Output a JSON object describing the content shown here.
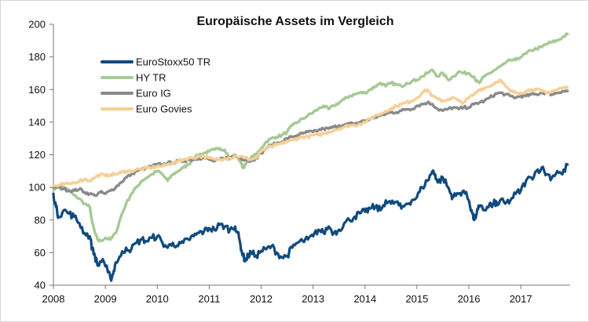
{
  "chart_data": {
    "type": "line",
    "title": "Europäische Assets im Vergleich",
    "xlabel": "",
    "ylabel": "",
    "xlim": [
      2008,
      2017.95
    ],
    "ylim": [
      40,
      200
    ],
    "y_ticks": [
      40,
      60,
      80,
      100,
      120,
      140,
      160,
      180,
      200
    ],
    "x_ticks": [
      2008,
      2009,
      2010,
      2011,
      2012,
      2013,
      2014,
      2015,
      2016,
      2017
    ],
    "grid": false,
    "legend_position": "top-left",
    "series": [
      {
        "name": "EuroStoxx50 TR",
        "color": "#114a7e",
        "x": [
          2008.0,
          2008.05,
          2008.1,
          2008.2,
          2008.3,
          2008.4,
          2008.5,
          2008.6,
          2008.7,
          2008.75,
          2008.8,
          2008.85,
          2008.95,
          2009.05,
          2009.1,
          2009.15,
          2009.2,
          2009.3,
          2009.4,
          2009.5,
          2009.6,
          2009.7,
          2009.8,
          2009.9,
          2010.0,
          2010.1,
          2010.2,
          2010.3,
          2010.4,
          2010.5,
          2010.6,
          2010.7,
          2010.8,
          2010.9,
          2011.0,
          2011.1,
          2011.2,
          2011.3,
          2011.4,
          2011.5,
          2011.55,
          2011.6,
          2011.65,
          2011.7,
          2011.75,
          2011.8,
          2011.9,
          2012.0,
          2012.1,
          2012.2,
          2012.3,
          2012.4,
          2012.5,
          2012.6,
          2012.7,
          2012.8,
          2012.9,
          2013.0,
          2013.1,
          2013.2,
          2013.3,
          2013.4,
          2013.5,
          2013.6,
          2013.7,
          2013.8,
          2013.9,
          2014.0,
          2014.1,
          2014.2,
          2014.3,
          2014.4,
          2014.5,
          2014.6,
          2014.7,
          2014.8,
          2014.9,
          2015.0,
          2015.1,
          2015.2,
          2015.3,
          2015.35,
          2015.4,
          2015.5,
          2015.6,
          2015.65,
          2015.7,
          2015.8,
          2015.9,
          2016.0,
          2016.05,
          2016.1,
          2016.15,
          2016.2,
          2016.3,
          2016.4,
          2016.45,
          2016.5,
          2016.55,
          2016.6,
          2016.7,
          2016.8,
          2016.9,
          2017.0,
          2017.1,
          2017.2,
          2017.3,
          2017.4,
          2017.5,
          2017.6,
          2017.7,
          2017.8,
          2017.9
        ],
        "values": [
          96,
          88,
          82,
          86,
          84,
          82,
          78,
          72,
          70,
          62,
          58,
          52,
          56,
          48,
          44,
          47,
          54,
          58,
          63,
          62,
          66,
          68,
          67,
          69,
          70,
          66,
          63,
          66,
          64,
          66,
          68,
          70,
          72,
          73,
          75,
          74,
          77,
          76,
          74,
          76,
          72,
          65,
          58,
          55,
          58,
          60,
          58,
          61,
          62,
          64,
          60,
          57,
          58,
          63,
          66,
          67,
          68,
          70,
          74,
          72,
          76,
          72,
          74,
          78,
          80,
          82,
          84,
          85,
          87,
          88,
          86,
          92,
          90,
          91,
          87,
          90,
          92,
          94,
          100,
          104,
          110,
          108,
          103,
          106,
          100,
          96,
          94,
          96,
          98,
          92,
          86,
          80,
          84,
          88,
          86,
          90,
          88,
          91,
          89,
          92,
          90,
          92,
          96,
          98,
          104,
          106,
          110,
          112,
          108,
          106,
          110,
          108,
          114
        ]
      },
      {
        "name": "HY TR",
        "color": "#a7c994",
        "x": [
          2008.0,
          2008.1,
          2008.2,
          2008.3,
          2008.4,
          2008.5,
          2008.6,
          2008.7,
          2008.75,
          2008.8,
          2008.85,
          2008.9,
          2009.0,
          2009.1,
          2009.2,
          2009.3,
          2009.4,
          2009.5,
          2009.6,
          2009.7,
          2009.8,
          2009.9,
          2010.0,
          2010.1,
          2010.2,
          2010.3,
          2010.4,
          2010.5,
          2010.6,
          2010.7,
          2010.8,
          2010.9,
          2011.0,
          2011.1,
          2011.2,
          2011.3,
          2011.4,
          2011.5,
          2011.6,
          2011.65,
          2011.7,
          2011.8,
          2011.9,
          2012.0,
          2012.1,
          2012.2,
          2012.3,
          2012.4,
          2012.5,
          2012.6,
          2012.7,
          2012.8,
          2012.9,
          2013.0,
          2013.1,
          2013.2,
          2013.3,
          2013.4,
          2013.5,
          2013.6,
          2013.7,
          2013.8,
          2013.9,
          2014.0,
          2014.1,
          2014.2,
          2014.3,
          2014.4,
          2014.5,
          2014.6,
          2014.7,
          2014.8,
          2014.9,
          2015.0,
          2015.1,
          2015.2,
          2015.3,
          2015.4,
          2015.5,
          2015.6,
          2015.7,
          2015.8,
          2015.9,
          2016.0,
          2016.1,
          2016.15,
          2016.2,
          2016.3,
          2016.4,
          2016.5,
          2016.6,
          2016.7,
          2016.8,
          2016.9,
          2017.0,
          2017.1,
          2017.2,
          2017.3,
          2017.4,
          2017.5,
          2017.6,
          2017.7,
          2017.8,
          2017.9
        ],
        "values": [
          99,
          101,
          100,
          98,
          95,
          93,
          90,
          88,
          78,
          72,
          68,
          67,
          69,
          68,
          72,
          82,
          90,
          96,
          100,
          104,
          106,
          108,
          110,
          108,
          104,
          108,
          110,
          112,
          114,
          118,
          120,
          121,
          122,
          123,
          124,
          123,
          118,
          120,
          116,
          112,
          114,
          118,
          120,
          124,
          128,
          130,
          131,
          132,
          134,
          138,
          140,
          142,
          144,
          146,
          148,
          150,
          148,
          150,
          152,
          154,
          156,
          157,
          158,
          158,
          160,
          162,
          164,
          162,
          164,
          163,
          162,
          164,
          165,
          166,
          168,
          170,
          172,
          168,
          170,
          166,
          168,
          171,
          170,
          170,
          168,
          165,
          164,
          168,
          170,
          172,
          174,
          176,
          178,
          178,
          180,
          182,
          184,
          185,
          186,
          188,
          189,
          190,
          192,
          194
        ]
      },
      {
        "name": "Euro IG",
        "color": "#8a8a8a",
        "x": [
          2008.0,
          2008.1,
          2008.2,
          2008.3,
          2008.4,
          2008.5,
          2008.6,
          2008.7,
          2008.8,
          2008.9,
          2009.0,
          2009.1,
          2009.2,
          2009.3,
          2009.4,
          2009.5,
          2009.6,
          2009.7,
          2009.8,
          2009.9,
          2010.0,
          2010.1,
          2010.2,
          2010.3,
          2010.4,
          2010.5,
          2010.6,
          2010.7,
          2010.8,
          2010.9,
          2011.0,
          2011.1,
          2011.2,
          2011.3,
          2011.4,
          2011.5,
          2011.6,
          2011.7,
          2011.8,
          2011.9,
          2012.0,
          2012.1,
          2012.2,
          2012.3,
          2012.4,
          2012.5,
          2012.6,
          2012.7,
          2012.8,
          2012.9,
          2013.0,
          2013.1,
          2013.2,
          2013.3,
          2013.4,
          2013.5,
          2013.6,
          2013.7,
          2013.8,
          2013.9,
          2014.0,
          2014.1,
          2014.2,
          2014.3,
          2014.4,
          2014.5,
          2014.6,
          2014.7,
          2014.8,
          2014.9,
          2015.0,
          2015.1,
          2015.2,
          2015.3,
          2015.4,
          2015.5,
          2015.6,
          2015.7,
          2015.8,
          2015.9,
          2016.0,
          2016.1,
          2016.2,
          2016.3,
          2016.4,
          2016.5,
          2016.6,
          2016.7,
          2016.8,
          2016.9,
          2017.0,
          2017.1,
          2017.2,
          2017.3,
          2017.4,
          2017.5,
          2017.6,
          2017.7,
          2017.8,
          2017.9
        ],
        "values": [
          100,
          100,
          99,
          98,
          98,
          99,
          97,
          96,
          95,
          97,
          96,
          98,
          100,
          103,
          106,
          108,
          110,
          111,
          112,
          113,
          114,
          114,
          115,
          115,
          116,
          116,
          117,
          117,
          118,
          118,
          117,
          116,
          117,
          118,
          118,
          119,
          118,
          117,
          116,
          118,
          121,
          124,
          126,
          127,
          128,
          130,
          131,
          132,
          133,
          134,
          134,
          135,
          136,
          136,
          137,
          138,
          138,
          139,
          139,
          140,
          141,
          142,
          143,
          144,
          145,
          146,
          146,
          147,
          148,
          148,
          150,
          151,
          152,
          151,
          148,
          147,
          148,
          149,
          148,
          149,
          149,
          151,
          152,
          153,
          155,
          157,
          158,
          157,
          156,
          155,
          156,
          156,
          157,
          157,
          158,
          158,
          157,
          158,
          159,
          159
        ]
      },
      {
        "name": "Euro Govies",
        "color": "#f6cf96",
        "x": [
          2008.0,
          2008.1,
          2008.2,
          2008.3,
          2008.4,
          2008.5,
          2008.6,
          2008.7,
          2008.8,
          2008.9,
          2009.0,
          2009.1,
          2009.2,
          2009.3,
          2009.4,
          2009.5,
          2009.6,
          2009.7,
          2009.8,
          2009.9,
          2010.0,
          2010.1,
          2010.2,
          2010.3,
          2010.4,
          2010.5,
          2010.6,
          2010.7,
          2010.8,
          2010.9,
          2011.0,
          2011.1,
          2011.2,
          2011.3,
          2011.4,
          2011.5,
          2011.6,
          2011.7,
          2011.8,
          2011.9,
          2012.0,
          2012.1,
          2012.2,
          2012.3,
          2012.4,
          2012.5,
          2012.6,
          2012.7,
          2012.8,
          2012.9,
          2013.0,
          2013.1,
          2013.2,
          2013.3,
          2013.4,
          2013.5,
          2013.6,
          2013.7,
          2013.8,
          2013.9,
          2014.0,
          2014.1,
          2014.2,
          2014.3,
          2014.4,
          2014.5,
          2014.6,
          2014.7,
          2014.8,
          2014.9,
          2015.0,
          2015.1,
          2015.2,
          2015.3,
          2015.4,
          2015.5,
          2015.6,
          2015.7,
          2015.8,
          2015.9,
          2016.0,
          2016.1,
          2016.2,
          2016.3,
          2016.4,
          2016.5,
          2016.6,
          2016.7,
          2016.8,
          2016.9,
          2017.0,
          2017.1,
          2017.2,
          2017.3,
          2017.4,
          2017.5,
          2017.6,
          2017.7,
          2017.8,
          2017.9
        ],
        "values": [
          101,
          101,
          102,
          102,
          103,
          104,
          105,
          104,
          106,
          108,
          107,
          108,
          108,
          109,
          110,
          110,
          111,
          111,
          112,
          112,
          113,
          113,
          114,
          115,
          116,
          117,
          118,
          118,
          119,
          119,
          118,
          117,
          117,
          118,
          118,
          119,
          119,
          118,
          117,
          118,
          122,
          124,
          125,
          126,
          127,
          128,
          129,
          130,
          131,
          131,
          132,
          132,
          133,
          134,
          135,
          136,
          137,
          138,
          138,
          139,
          140,
          142,
          144,
          145,
          147,
          148,
          150,
          151,
          152,
          153,
          155,
          158,
          160,
          156,
          154,
          153,
          154,
          155,
          153,
          152,
          155,
          157,
          160,
          161,
          162,
          164,
          166,
          162,
          159,
          158,
          158,
          159,
          160,
          160,
          159,
          158,
          159,
          160,
          161,
          161
        ]
      }
    ]
  }
}
